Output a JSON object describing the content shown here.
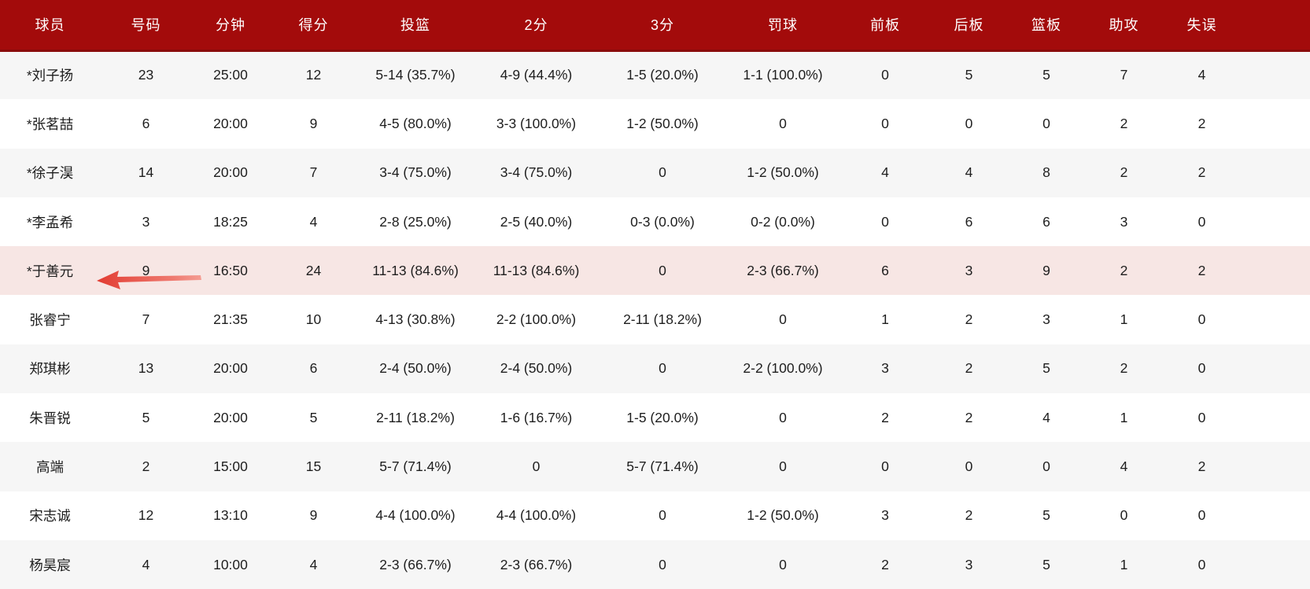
{
  "colors": {
    "header_bg": "#a30b0b",
    "header_border": "#8a0c0c",
    "header_text": "#ffffff",
    "row_bg": "#ffffff",
    "row_alt_bg": "#f6f6f6",
    "highlight_row_bg": "#f7e6e4",
    "arrow_red": "#e23c32",
    "arrow_red_light": "#f49d93"
  },
  "table": {
    "columns": [
      {
        "key": "player",
        "label": "球员"
      },
      {
        "key": "number",
        "label": "号码"
      },
      {
        "key": "minutes",
        "label": "分钟"
      },
      {
        "key": "points",
        "label": "得分"
      },
      {
        "key": "field_goals",
        "label": "投篮"
      },
      {
        "key": "two_pointers",
        "label": "2分"
      },
      {
        "key": "three_pointers",
        "label": "3分"
      },
      {
        "key": "free_throws",
        "label": "罚球"
      },
      {
        "key": "offensive_rebounds",
        "label": "前板"
      },
      {
        "key": "defensive_rebounds",
        "label": "后板"
      },
      {
        "key": "rebounds",
        "label": "篮板"
      },
      {
        "key": "assists",
        "label": "助攻"
      },
      {
        "key": "turnovers",
        "label": "失误"
      }
    ],
    "rows": [
      {
        "highlighted": false,
        "cells": [
          "*刘子扬",
          "23",
          "25:00",
          "12",
          "5-14 (35.7%)",
          "4-9 (44.4%)",
          "1-5 (20.0%)",
          "1-1 (100.0%)",
          "0",
          "5",
          "5",
          "7",
          "4"
        ]
      },
      {
        "highlighted": false,
        "cells": [
          "*张茗喆",
          "6",
          "20:00",
          "9",
          "4-5 (80.0%)",
          "3-3 (100.0%)",
          "1-2 (50.0%)",
          "0",
          "0",
          "0",
          "0",
          "2",
          "2"
        ]
      },
      {
        "highlighted": false,
        "cells": [
          "*徐子淏",
          "14",
          "20:00",
          "7",
          "3-4 (75.0%)",
          "3-4 (75.0%)",
          "0",
          "1-2 (50.0%)",
          "4",
          "4",
          "8",
          "2",
          "2"
        ]
      },
      {
        "highlighted": false,
        "cells": [
          "*李孟希",
          "3",
          "18:25",
          "4",
          "2-8 (25.0%)",
          "2-5 (40.0%)",
          "0-3 (0.0%)",
          "0-2 (0.0%)",
          "0",
          "6",
          "6",
          "3",
          "0"
        ]
      },
      {
        "highlighted": true,
        "cells": [
          "*于善元",
          "9",
          "16:50",
          "24",
          "11-13 (84.6%)",
          "11-13 (84.6%)",
          "0",
          "2-3 (66.7%)",
          "6",
          "3",
          "9",
          "2",
          "2"
        ]
      },
      {
        "highlighted": false,
        "cells": [
          "张睿宁",
          "7",
          "21:35",
          "10",
          "4-13 (30.8%)",
          "2-2 (100.0%)",
          "2-11 (18.2%)",
          "0",
          "1",
          "2",
          "3",
          "1",
          "0"
        ]
      },
      {
        "highlighted": false,
        "cells": [
          "郑琪彬",
          "13",
          "20:00",
          "6",
          "2-4 (50.0%)",
          "2-4 (50.0%)",
          "0",
          "2-2 (100.0%)",
          "3",
          "2",
          "5",
          "2",
          "0"
        ]
      },
      {
        "highlighted": false,
        "cells": [
          "朱晋锐",
          "5",
          "20:00",
          "5",
          "2-11 (18.2%)",
          "1-6 (16.7%)",
          "1-5 (20.0%)",
          "0",
          "2",
          "2",
          "4",
          "1",
          "0"
        ]
      },
      {
        "highlighted": false,
        "cells": [
          "高端",
          "2",
          "15:00",
          "15",
          "5-7 (71.4%)",
          "0",
          "5-7 (71.4%)",
          "0",
          "0",
          "0",
          "0",
          "4",
          "2"
        ]
      },
      {
        "highlighted": false,
        "cells": [
          "宋志诚",
          "12",
          "13:10",
          "9",
          "4-4 (100.0%)",
          "4-4 (100.0%)",
          "0",
          "1-2 (50.0%)",
          "3",
          "2",
          "5",
          "0",
          "0"
        ]
      },
      {
        "highlighted": false,
        "cells": [
          "杨昊宸",
          "4",
          "10:00",
          "4",
          "2-3 (66.7%)",
          "2-3 (66.7%)",
          "0",
          "0",
          "2",
          "3",
          "5",
          "1",
          "0"
        ]
      }
    ]
  },
  "annotation": {
    "icon": "arrow-left-icon",
    "points_to_player": "*于善元"
  }
}
